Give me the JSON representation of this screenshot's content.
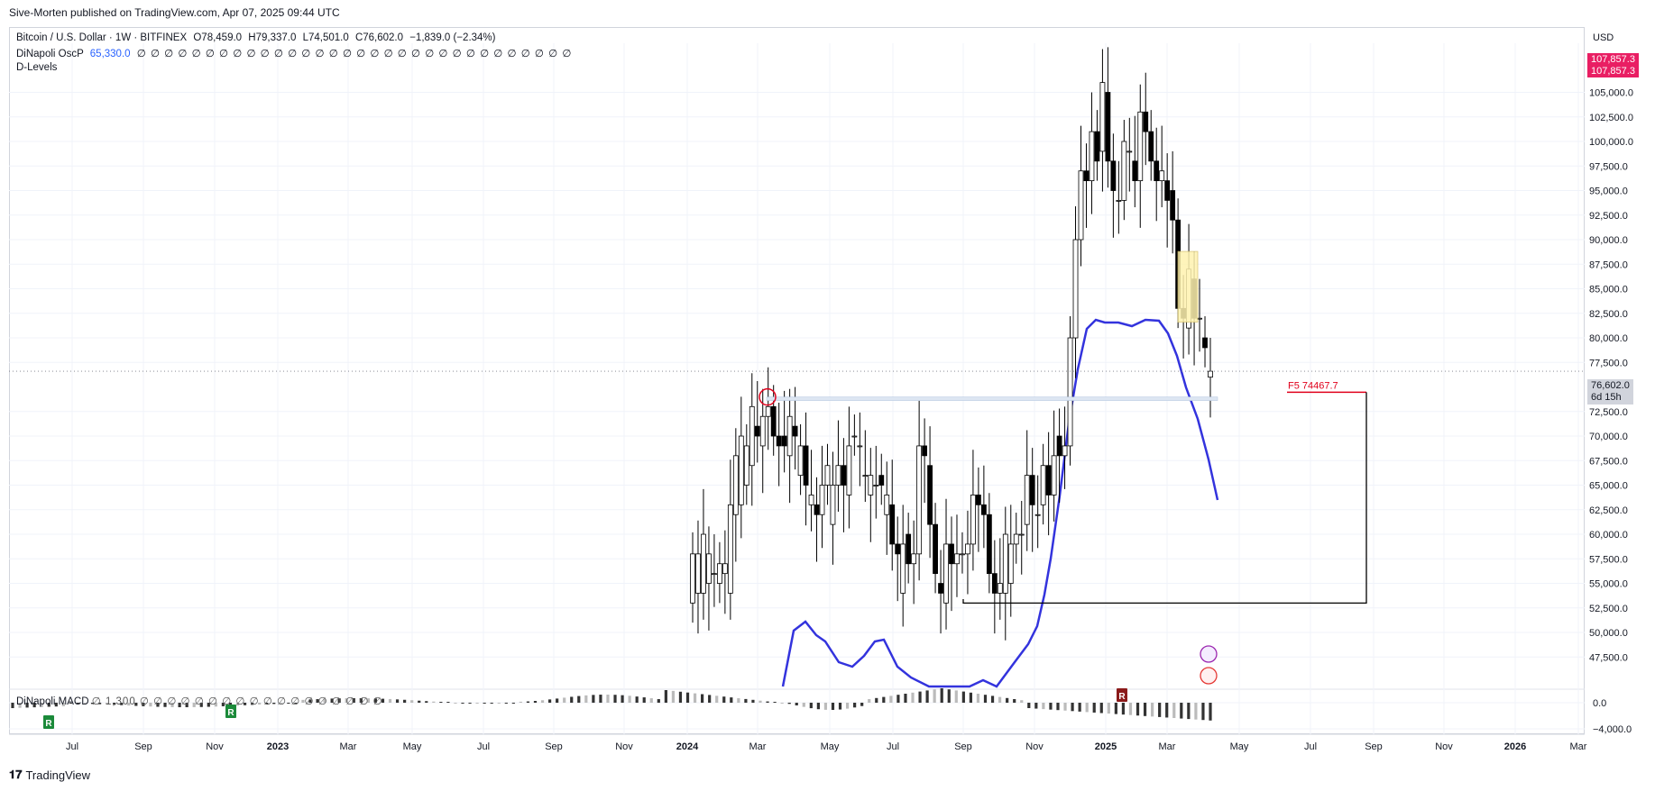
{
  "header": {
    "published_by": "Sive-Morten published on TradingView.com, Apr 07, 2025 09:44 UTC"
  },
  "legend": {
    "symbol": "Bitcoin / U.S. Dollar · 1W · BITFINEX",
    "open": "O78,459.0",
    "high": "H79,337.0",
    "low": "L74,501.0",
    "close": "C76,602.0",
    "change": "−1,839.0 (−2.34%)",
    "osc_name": "DiNapoli OscP",
    "osc_value": "65,330.0",
    "osc_empty": "∅ ∅ ∅ ∅ ∅ ∅ ∅ ∅ ∅ ∅ ∅ ∅ ∅ ∅ ∅ ∅ ∅ ∅ ∅ ∅ ∅ ∅ ∅ ∅ ∅ ∅ ∅ ∅ ∅ ∅ ∅ ∅",
    "dlevels": "D-Levels",
    "macd_name": "DiNapoli MACD",
    "macd_vals": "∅ 1,300 ∅ ∅ ∅ ∅ ∅ ∅ ∅ ∅ ∅ ∅ ∅ ∅ ∅ ∅ ∅ ∅ ∅ ∅"
  },
  "price_axis": {
    "currency": "USD",
    "current_price": "76,602.0",
    "countdown": "6d 15h",
    "top_tag": "107,857.3",
    "ticks": [
      "105,000.0",
      "102,500.0",
      "100,000.0",
      "97,500.0",
      "95,000.0",
      "92,500.0",
      "90,000.0",
      "87,500.0",
      "85,000.0",
      "82,500.0",
      "80,000.0",
      "77,500.0",
      "72,500.0",
      "70,000.0",
      "67,500.0",
      "65,000.0",
      "62,500.0",
      "60,000.0",
      "57,500.0",
      "55,000.0",
      "52,500.0",
      "50,000.0",
      "47,500.0"
    ],
    "macd_ticks": [
      "0.0",
      "−4,000.0"
    ]
  },
  "time_axis": {
    "labels": [
      "Jul",
      "Sep",
      "Nov",
      "2023",
      "Mar",
      "May",
      "Jul",
      "Sep",
      "Nov",
      "2024",
      "Mar",
      "May",
      "Jul",
      "Sep",
      "Nov",
      "2025",
      "Mar",
      "May",
      "Jul",
      "Sep",
      "Nov",
      "2026",
      "Mar"
    ]
  },
  "annotations": {
    "target_label": "F5  74467.7",
    "signal_r": "R"
  },
  "colors": {
    "bull": "#ffffff",
    "bear": "#000000",
    "osc_line": "#3333dd",
    "target": "#e0001b",
    "price_tag": "#e91e63",
    "highlight": "#fff3b0"
  },
  "footer": {
    "brand": "TradingView"
  },
  "chart_data": {
    "type": "candlestick",
    "title": "Bitcoin / U.S. Dollar · 1W · BITFINEX",
    "ylim": [
      44500,
      110000
    ],
    "candles": [
      [
        53,
        54,
        54,
        55,
        56,
        55,
        56,
        54,
        62,
        63,
        65,
        67,
        71,
        69,
        72,
        73,
        70,
        70,
        68,
        71,
        66,
        69,
        63,
        63,
        62,
        65,
        61,
        65,
        67,
        64,
        70,
        69,
        66,
        64,
        65,
        66,
        62,
        63,
        59,
        54,
        60,
        57,
        58,
        69,
        67,
        61,
        55,
        53,
        59,
        57,
        58,
        58,
        59,
        64,
        63,
        62,
        56,
        54,
        54,
        55,
        59,
        60,
        61,
        66,
        62,
        63,
        67,
        64,
        70,
        68,
        69,
        80,
        90,
        97,
        96,
        101,
        99,
        105,
        98,
        94,
        94,
        99,
        98,
        96,
        103,
        101,
        98,
        96,
        96,
        95,
        92,
        83,
        81,
        86,
        82,
        80,
        76
      ],
      [
        58,
        58,
        60,
        58,
        56,
        57,
        57,
        63,
        68,
        70,
        69,
        73,
        70,
        72,
        73,
        70,
        69,
        69,
        72,
        70,
        69,
        65,
        64,
        62,
        65,
        67,
        65,
        67,
        65,
        69,
        70,
        69,
        66,
        66,
        65,
        65,
        64,
        59,
        58,
        59,
        57,
        58,
        69,
        68,
        61,
        56,
        54,
        59,
        57,
        58,
        58,
        59,
        64,
        63,
        62,
        56,
        54,
        55,
        60,
        59,
        60,
        60,
        66,
        63,
        62,
        67,
        64,
        68,
        68,
        69,
        80,
        90,
        97,
        96,
        101,
        98,
        106,
        98,
        95,
        94,
        100,
        99,
        96,
        103,
        101,
        98,
        96,
        97,
        94,
        92,
        83,
        82,
        87,
        82,
        82,
        79,
        76.6
      ]
    ],
    "osc_line_last": 65330,
    "target_level": 74467.7,
    "target_box_low": 53000,
    "resistance_level": 73800
  }
}
